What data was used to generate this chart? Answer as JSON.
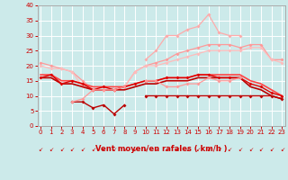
{
  "xlabel": "Vent moyen/en rafales ( km/h )",
  "background_color": "#cceaea",
  "grid_color": "#ffffff",
  "x": [
    0,
    1,
    2,
    3,
    4,
    5,
    6,
    7,
    8,
    9,
    10,
    11,
    12,
    13,
    14,
    15,
    16,
    17,
    18,
    19,
    20,
    21,
    22,
    23
  ],
  "series": [
    {
      "label": "rafales_max_light",
      "color": "#ffaaaa",
      "linewidth": 0.9,
      "marker": "D",
      "markersize": 2.0,
      "values": [
        null,
        null,
        null,
        null,
        null,
        null,
        null,
        null,
        null,
        null,
        22,
        25,
        30,
        30,
        32,
        33,
        37,
        31,
        30,
        30,
        null,
        null,
        null,
        null
      ]
    },
    {
      "label": "moyen_top_light",
      "color": "#ff9999",
      "linewidth": 0.9,
      "marker": "D",
      "markersize": 2.0,
      "values": [
        21,
        20,
        19,
        18,
        15,
        12,
        12,
        12,
        13,
        18,
        20,
        21,
        22,
        24,
        25,
        26,
        27,
        27,
        27,
        26,
        27,
        27,
        22,
        22
      ]
    },
    {
      "label": "moyen_mid_light",
      "color": "#ffbbbb",
      "linewidth": 0.9,
      "marker": "D",
      "markersize": 2.0,
      "values": [
        20,
        19,
        19,
        18,
        13,
        12,
        12,
        12,
        13,
        18,
        20,
        20,
        21,
        22,
        23,
        24,
        25,
        25,
        25,
        25,
        26,
        26,
        22,
        21
      ]
    },
    {
      "label": "vent_solid_upper",
      "color": "#ff4444",
      "linewidth": 1.2,
      "marker": null,
      "markersize": 0,
      "values": [
        17,
        17,
        15,
        15,
        14,
        13,
        13,
        13,
        13,
        14,
        15,
        15,
        16,
        16,
        16,
        17,
        17,
        17,
        17,
        17,
        15,
        14,
        12,
        10
      ]
    },
    {
      "label": "vent_solid_lower",
      "color": "#bb0000",
      "linewidth": 1.2,
      "marker": null,
      "markersize": 0,
      "values": [
        16,
        16,
        14,
        14,
        13,
        12,
        12,
        12,
        12,
        13,
        14,
        14,
        15,
        15,
        15,
        16,
        16,
        16,
        16,
        16,
        13,
        12,
        10,
        9
      ]
    },
    {
      "label": "vent_markers_dark",
      "color": "#dd0000",
      "linewidth": 1.0,
      "marker": "D",
      "markersize": 2.0,
      "values": [
        16,
        17,
        14,
        15,
        14,
        12,
        13,
        12,
        13,
        14,
        15,
        15,
        16,
        16,
        16,
        17,
        17,
        16,
        16,
        16,
        14,
        13,
        11,
        10
      ]
    },
    {
      "label": "bottom_dark",
      "color": "#bb0000",
      "linewidth": 1.0,
      "marker": "D",
      "markersize": 2.0,
      "values": [
        null,
        null,
        null,
        8,
        8,
        6,
        7,
        4,
        7,
        null,
        10,
        10,
        10,
        10,
        10,
        10,
        10,
        10,
        10,
        10,
        10,
        10,
        10,
        9
      ]
    },
    {
      "label": "bottom_light",
      "color": "#ff9999",
      "linewidth": 0.9,
      "marker": "D",
      "markersize": 2.0,
      "values": [
        null,
        null,
        null,
        8,
        9,
        12,
        12,
        12,
        13,
        null,
        15,
        15,
        13,
        13,
        14,
        14,
        16,
        15,
        15,
        16,
        null,
        null,
        null,
        null
      ]
    }
  ],
  "ylim": [
    0,
    40
  ],
  "xlim": [
    -0.3,
    23.3
  ],
  "yticks": [
    0,
    5,
    10,
    15,
    20,
    25,
    30,
    35,
    40
  ],
  "xticks": [
    0,
    1,
    2,
    3,
    4,
    5,
    6,
    7,
    8,
    9,
    10,
    11,
    12,
    13,
    14,
    15,
    16,
    17,
    18,
    19,
    20,
    21,
    22,
    23
  ],
  "arrow_color": "#cc0000",
  "xlabel_color": "#cc0000",
  "tick_color": "#cc0000",
  "spine_color": "#aaaaaa"
}
